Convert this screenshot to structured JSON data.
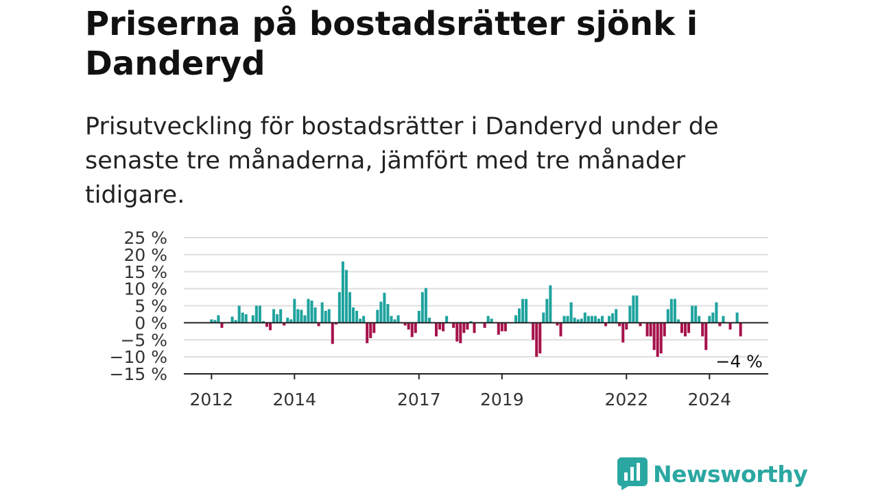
{
  "header": {
    "title": "Priserna på bostadsrätter sjönk i Danderyd",
    "subtitle": "Prisutveckling för bostadsrätter i Danderyd under de senaste tre månaderna, jämfört med tre månader tidigare."
  },
  "colors": {
    "positive": "#1fa39e",
    "negative": "#a6124a",
    "grid": "#dddddd",
    "axis": "#222222",
    "brand": "#2ba7a2"
  },
  "logo": {
    "text": "Newsworthy",
    "icon": "newsworthy-chart-bubble-icon"
  },
  "chart_data": {
    "type": "bar",
    "ylim": [
      -15,
      25
    ],
    "y_ticks": [
      25,
      20,
      15,
      10,
      5,
      0,
      -5,
      -10,
      -15
    ],
    "y_tick_labels": [
      "25 %",
      "20 %",
      "15 %",
      "10 %",
      "5 %",
      "0 %",
      "−5 %",
      "−10 %",
      "−15 %"
    ],
    "x_ticks": [
      {
        "label": "2012",
        "at": "2012-01"
      },
      {
        "label": "2014",
        "at": "2014-01"
      },
      {
        "label": "2017",
        "at": "2017-01"
      },
      {
        "label": "2019",
        "at": "2019-01"
      },
      {
        "label": "2022",
        "at": "2022-01"
      },
      {
        "label": "2024",
        "at": "2024-01"
      }
    ],
    "grid": true,
    "x_range": [
      "2011-05",
      "2025-06"
    ],
    "annotation": {
      "label": "−4 %",
      "x": "2024-10",
      "y": -4
    },
    "series": [
      {
        "values": [
          {
            "x": "2012-01",
            "y": 1
          },
          {
            "x": "2012-02",
            "y": 0.8
          },
          {
            "x": "2012-03",
            "y": 2.2
          },
          {
            "x": "2012-04",
            "y": -1.5
          },
          {
            "x": "2012-07",
            "y": 1.8
          },
          {
            "x": "2012-08",
            "y": 0.8
          },
          {
            "x": "2012-09",
            "y": 5
          },
          {
            "x": "2012-10",
            "y": 3
          },
          {
            "x": "2012-11",
            "y": 2.5
          },
          {
            "x": "2013-01",
            "y": 2.2
          },
          {
            "x": "2013-02",
            "y": 5
          },
          {
            "x": "2013-03",
            "y": 5
          },
          {
            "x": "2013-04",
            "y": 0.5
          },
          {
            "x": "2013-05",
            "y": -1.2
          },
          {
            "x": "2013-06",
            "y": -2.2
          },
          {
            "x": "2013-07",
            "y": 4
          },
          {
            "x": "2013-08",
            "y": 2.5
          },
          {
            "x": "2013-09",
            "y": 4
          },
          {
            "x": "2013-10",
            "y": -0.8
          },
          {
            "x": "2013-11",
            "y": 1.5
          },
          {
            "x": "2013-12",
            "y": 1
          },
          {
            "x": "2014-01",
            "y": 7
          },
          {
            "x": "2014-02",
            "y": 4
          },
          {
            "x": "2014-03",
            "y": 3.8
          },
          {
            "x": "2014-04",
            "y": 2.2
          },
          {
            "x": "2014-05",
            "y": 7
          },
          {
            "x": "2014-06",
            "y": 6.5
          },
          {
            "x": "2014-07",
            "y": 4.5
          },
          {
            "x": "2014-08",
            "y": -1
          },
          {
            "x": "2014-09",
            "y": 6
          },
          {
            "x": "2014-10",
            "y": 3.5
          },
          {
            "x": "2014-11",
            "y": 4
          },
          {
            "x": "2014-12",
            "y": -6.2
          },
          {
            "x": "2015-01",
            "y": -0.5
          },
          {
            "x": "2015-02",
            "y": 9
          },
          {
            "x": "2015-03",
            "y": 18
          },
          {
            "x": "2015-04",
            "y": 15.5
          },
          {
            "x": "2015-05",
            "y": 9
          },
          {
            "x": "2015-06",
            "y": 4.5
          },
          {
            "x": "2015-07",
            "y": 3.5
          },
          {
            "x": "2015-08",
            "y": 1.2
          },
          {
            "x": "2015-09",
            "y": 2
          },
          {
            "x": "2015-10",
            "y": -6
          },
          {
            "x": "2015-11",
            "y": -4.5
          },
          {
            "x": "2015-12",
            "y": -3
          },
          {
            "x": "2016-01",
            "y": 3.8
          },
          {
            "x": "2016-02",
            "y": 6.2
          },
          {
            "x": "2016-03",
            "y": 8.8
          },
          {
            "x": "2016-04",
            "y": 5.5
          },
          {
            "x": "2016-05",
            "y": 2
          },
          {
            "x": "2016-06",
            "y": 1
          },
          {
            "x": "2016-07",
            "y": 2.2
          },
          {
            "x": "2016-09",
            "y": -0.8
          },
          {
            "x": "2016-10",
            "y": -2
          },
          {
            "x": "2016-11",
            "y": -4.2
          },
          {
            "x": "2016-12",
            "y": -3
          },
          {
            "x": "2017-01",
            "y": 3.5
          },
          {
            "x": "2017-02",
            "y": 9
          },
          {
            "x": "2017-03",
            "y": 10.2
          },
          {
            "x": "2017-04",
            "y": 1.5
          },
          {
            "x": "2017-06",
            "y": -4
          },
          {
            "x": "2017-07",
            "y": -2
          },
          {
            "x": "2017-08",
            "y": -2.5
          },
          {
            "x": "2017-09",
            "y": 2
          },
          {
            "x": "2017-11",
            "y": -1.5
          },
          {
            "x": "2017-12",
            "y": -5.5
          },
          {
            "x": "2018-01",
            "y": -6
          },
          {
            "x": "2018-02",
            "y": -3
          },
          {
            "x": "2018-03",
            "y": -2
          },
          {
            "x": "2018-04",
            "y": 0.5
          },
          {
            "x": "2018-05",
            "y": -3
          },
          {
            "x": "2018-08",
            "y": -1.5
          },
          {
            "x": "2018-09",
            "y": 2
          },
          {
            "x": "2018-10",
            "y": 1.2
          },
          {
            "x": "2018-12",
            "y": -3.5
          },
          {
            "x": "2019-01",
            "y": -2.5
          },
          {
            "x": "2019-02",
            "y": -2.5
          },
          {
            "x": "2019-05",
            "y": 2.2
          },
          {
            "x": "2019-06",
            "y": 4.2
          },
          {
            "x": "2019-07",
            "y": 7
          },
          {
            "x": "2019-08",
            "y": 7
          },
          {
            "x": "2019-10",
            "y": -5
          },
          {
            "x": "2019-11",
            "y": -10
          },
          {
            "x": "2019-12",
            "y": -9
          },
          {
            "x": "2020-01",
            "y": 3
          },
          {
            "x": "2020-02",
            "y": 7
          },
          {
            "x": "2020-03",
            "y": 11
          },
          {
            "x": "2020-05",
            "y": -0.8
          },
          {
            "x": "2020-06",
            "y": -4
          },
          {
            "x": "2020-07",
            "y": 2
          },
          {
            "x": "2020-08",
            "y": 2
          },
          {
            "x": "2020-09",
            "y": 6
          },
          {
            "x": "2020-10",
            "y": 1.5
          },
          {
            "x": "2020-11",
            "y": 1
          },
          {
            "x": "2020-12",
            "y": 1.2
          },
          {
            "x": "2021-01",
            "y": 3
          },
          {
            "x": "2021-02",
            "y": 2
          },
          {
            "x": "2021-03",
            "y": 2
          },
          {
            "x": "2021-04",
            "y": 2
          },
          {
            "x": "2021-05",
            "y": 1.2
          },
          {
            "x": "2021-06",
            "y": 2
          },
          {
            "x": "2021-07",
            "y": -1
          },
          {
            "x": "2021-08",
            "y": 2
          },
          {
            "x": "2021-09",
            "y": 2.8
          },
          {
            "x": "2021-10",
            "y": 4
          },
          {
            "x": "2021-11",
            "y": -1
          },
          {
            "x": "2021-12",
            "y": -5.8
          },
          {
            "x": "2022-01",
            "y": -2
          },
          {
            "x": "2022-02",
            "y": 5
          },
          {
            "x": "2022-03",
            "y": 8
          },
          {
            "x": "2022-04",
            "y": 8
          },
          {
            "x": "2022-05",
            "y": -1
          },
          {
            "x": "2022-07",
            "y": -4
          },
          {
            "x": "2022-08",
            "y": -4
          },
          {
            "x": "2022-09",
            "y": -8
          },
          {
            "x": "2022-10",
            "y": -10
          },
          {
            "x": "2022-11",
            "y": -9
          },
          {
            "x": "2022-12",
            "y": -4
          },
          {
            "x": "2023-01",
            "y": 4
          },
          {
            "x": "2023-02",
            "y": 7
          },
          {
            "x": "2023-03",
            "y": 7
          },
          {
            "x": "2023-04",
            "y": 1
          },
          {
            "x": "2023-05",
            "y": -3
          },
          {
            "x": "2023-06",
            "y": -4
          },
          {
            "x": "2023-07",
            "y": -3
          },
          {
            "x": "2023-08",
            "y": 5
          },
          {
            "x": "2023-09",
            "y": 5
          },
          {
            "x": "2023-10",
            "y": 2
          },
          {
            "x": "2023-11",
            "y": -4
          },
          {
            "x": "2023-12",
            "y": -8
          },
          {
            "x": "2024-01",
            "y": 2
          },
          {
            "x": "2024-02",
            "y": 3
          },
          {
            "x": "2024-03",
            "y": 6
          },
          {
            "x": "2024-04",
            "y": -1
          },
          {
            "x": "2024-05",
            "y": 2
          },
          {
            "x": "2024-07",
            "y": -2
          },
          {
            "x": "2024-09",
            "y": 3
          },
          {
            "x": "2024-10",
            "y": -4
          }
        ]
      }
    ]
  }
}
